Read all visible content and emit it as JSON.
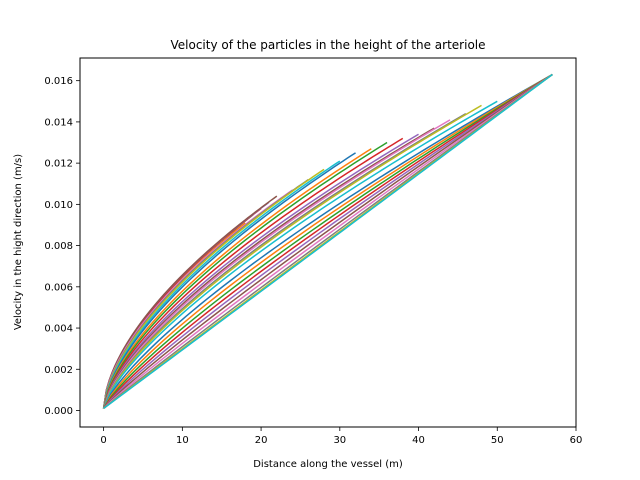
{
  "chart_data": {
    "type": "line",
    "title": "Velocity of the particles in the height of the arteriole",
    "xlabel": "Distance along the vessel (m)",
    "ylabel": "Velocity in the hight direction (m/s)",
    "xlim": [
      -3,
      60
    ],
    "ylim": [
      -0.0008,
      0.0171
    ],
    "xticks": [
      0,
      10,
      20,
      30,
      40,
      50,
      60
    ],
    "yticks": [
      0.0,
      0.002,
      0.004,
      0.006,
      0.008,
      0.01,
      0.012,
      0.014,
      0.016
    ],
    "xtick_labels": [
      "0",
      "10",
      "20",
      "30",
      "40",
      "50",
      "60"
    ],
    "ytick_labels": [
      "0.000",
      "0.002",
      "0.004",
      "0.006",
      "0.008",
      "0.010",
      "0.012",
      "0.014",
      "0.016"
    ],
    "grid": false,
    "legend": "none",
    "palette": [
      "#1f77b4",
      "#ff7f0e",
      "#2ca02c",
      "#d62728",
      "#9467bd",
      "#8c564b",
      "#e377c2",
      "#7f7f7f",
      "#bcbd22",
      "#17becf"
    ],
    "series_family": {
      "description_of_trajectories": "30 particle trajectories starting near (0, 0.0001); most bend upward and stop at various distances, outer ones converge at (57, 0.0163)",
      "count": 30,
      "start_x": 0,
      "start_y": 0.0001,
      "end_x": [
        17,
        18,
        19,
        20,
        21,
        22,
        24,
        26,
        28,
        30,
        32,
        34,
        36,
        38,
        40,
        42,
        44,
        46,
        48,
        50,
        57,
        57,
        57,
        57,
        57,
        57,
        57,
        57,
        57,
        57
      ],
      "end_y": [
        0.0088,
        0.0091,
        0.0095,
        0.0098,
        0.0101,
        0.0104,
        0.0107,
        0.0112,
        0.0117,
        0.0121,
        0.0125,
        0.0127,
        0.013,
        0.0132,
        0.0134,
        0.0137,
        0.0141,
        0.0144,
        0.0148,
        0.015,
        0.0163,
        0.0163,
        0.0163,
        0.0163,
        0.0163,
        0.0163,
        0.0163,
        0.0163,
        0.0163,
        0.0163
      ],
      "exponent": [
        0.62,
        0.61,
        0.6,
        0.6,
        0.59,
        0.59,
        0.6,
        0.61,
        0.62,
        0.63,
        0.64,
        0.65,
        0.66,
        0.67,
        0.68,
        0.69,
        0.7,
        0.71,
        0.72,
        0.73,
        0.76,
        0.79,
        0.82,
        0.85,
        0.88,
        0.91,
        0.94,
        0.97,
        0.99,
        1.0
      ]
    }
  }
}
